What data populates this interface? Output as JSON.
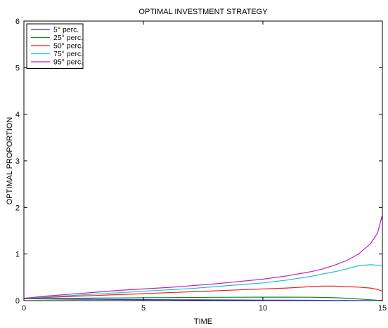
{
  "chart_data": {
    "type": "line",
    "title": "OPTIMAL INVESTMENT STRATEGY",
    "xlabel": "TIME",
    "ylabel": "OPTIMAL PROPORTION",
    "xlim": [
      0,
      15
    ],
    "ylim": [
      0,
      6
    ],
    "xticks": [
      0,
      5,
      10,
      15
    ],
    "yticks": [
      0,
      1,
      2,
      3,
      4,
      5,
      6
    ],
    "grid": false,
    "legend_position": "top-left",
    "x": [
      0,
      1,
      2,
      3,
      4,
      5,
      6,
      7,
      8,
      9,
      10,
      11,
      12,
      12.5,
      13,
      13.5,
      14,
      14.5,
      14.8,
      15
    ],
    "series": [
      {
        "name": "5° perc.",
        "color": "#2f2fdd",
        "values": [
          0.04,
          0.035,
          0.03,
          0.027,
          0.024,
          0.021,
          0.019,
          0.017,
          0.015,
          0.013,
          0.011,
          0.009,
          0.007,
          0.006,
          0.005,
          0.004,
          0.003,
          0.002,
          0.001,
          0.0
        ]
      },
      {
        "name": "25° perc.",
        "color": "#118811",
        "values": [
          0.04,
          0.045,
          0.05,
          0.055,
          0.058,
          0.062,
          0.065,
          0.068,
          0.071,
          0.073,
          0.074,
          0.074,
          0.072,
          0.068,
          0.062,
          0.052,
          0.035,
          0.018,
          0.008,
          0.0
        ]
      },
      {
        "name": "50° perc.",
        "color": "#e8251d",
        "values": [
          0.05,
          0.07,
          0.09,
          0.11,
          0.13,
          0.15,
          0.17,
          0.19,
          0.21,
          0.23,
          0.25,
          0.27,
          0.3,
          0.31,
          0.31,
          0.3,
          0.29,
          0.27,
          0.24,
          0.2
        ]
      },
      {
        "name": "75° perc.",
        "color": "#19c2c2",
        "values": [
          0.05,
          0.08,
          0.11,
          0.14,
          0.17,
          0.2,
          0.23,
          0.26,
          0.3,
          0.34,
          0.38,
          0.44,
          0.52,
          0.57,
          0.62,
          0.68,
          0.75,
          0.77,
          0.76,
          0.75
        ]
      },
      {
        "name": "95° perc.",
        "color": "#c21dc2",
        "values": [
          0.05,
          0.1,
          0.14,
          0.18,
          0.22,
          0.25,
          0.28,
          0.32,
          0.36,
          0.41,
          0.46,
          0.53,
          0.62,
          0.68,
          0.76,
          0.86,
          1.0,
          1.22,
          1.45,
          1.85
        ]
      }
    ]
  }
}
